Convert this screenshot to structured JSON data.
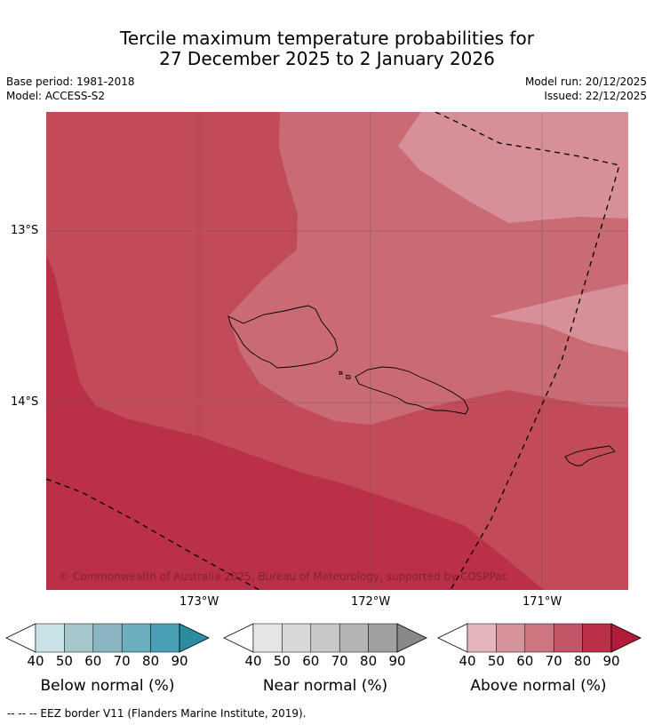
{
  "header": {
    "title_line1": "Tercile maximum temperature probabilities for",
    "title_line2": "27 December 2025 to 2 January 2026",
    "base_period": "Base period: 1981-2018",
    "model": "Model: ACCESS-S2",
    "model_run": "Model run: 20/12/2025",
    "issued": "Issued: 22/12/2025"
  },
  "map": {
    "lat_ticks": [
      "13°S",
      "14°S"
    ],
    "lon_ticks": [
      "173°W",
      "172°W",
      "171°W"
    ],
    "copyright": "© Commonwealth of Australia 2025, Bureau of Meteorology, supported by COSPPac",
    "colors": {
      "above_50": "#d78f98",
      "above_60": "#c96a75",
      "above_70": "#c24b5a",
      "above_80": "#bb3049"
    }
  },
  "legend": {
    "ticks": [
      "40",
      "50",
      "60",
      "70",
      "80",
      "90"
    ],
    "below": {
      "label": "Below normal (%)",
      "colors": [
        "#c9e2e7",
        "#a7c6cb",
        "#88b5c1",
        "#6caebd",
        "#4a9fb4",
        "#2a8c9f"
      ]
    },
    "near": {
      "label": "Near normal (%)",
      "colors": [
        "#e5e5e5",
        "#d8d8d8",
        "#c8c8c8",
        "#b4b4b4",
        "#a0a0a0",
        "#888888"
      ]
    },
    "above": {
      "label": "Above normal (%)",
      "colors": [
        "#e3b6bb",
        "#d6939a",
        "#cd7680",
        "#c45566",
        "#bb3049",
        "#b01c3a"
      ]
    }
  },
  "footer": "--  --  -- EEZ border V11 (Flanders Marine Institute, 2019)."
}
